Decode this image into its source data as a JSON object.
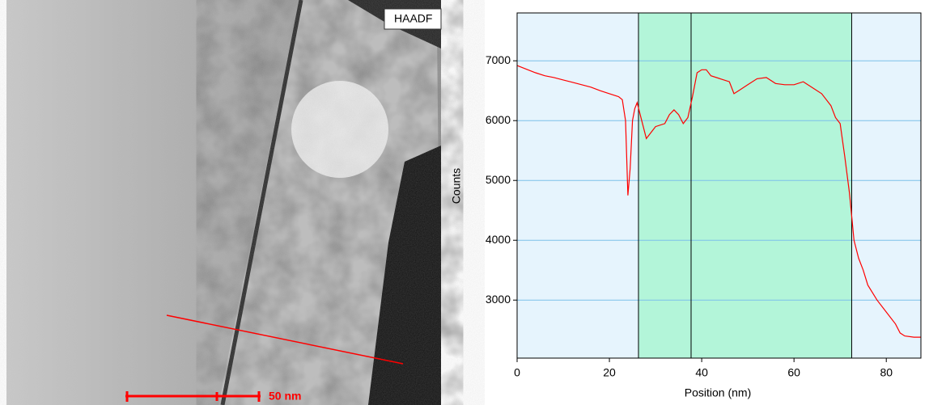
{
  "image_panel": {
    "label": "HAADF",
    "scale_bar": "50 nm"
  },
  "chart_data": {
    "type": "line",
    "xlabel": "Position (nm)",
    "ylabel": "Counts",
    "xlim": [
      0,
      87.5
    ],
    "ylim": [
      2030,
      7800
    ],
    "xticks": [
      0,
      20,
      40,
      60,
      80
    ],
    "yticks": [
      3000,
      4000,
      5000,
      6000,
      7000
    ],
    "grid": true,
    "region_boundaries": [
      26.3,
      37.7,
      72.5
    ],
    "outer_color": "#e6f4fd",
    "inner_color": "#b3f5d9",
    "x": [
      0,
      2,
      4,
      6,
      8,
      10,
      12,
      14,
      16,
      18,
      20,
      22,
      22.8,
      23.5,
      24,
      24.5,
      25,
      25.5,
      26,
      27,
      28,
      29,
      30,
      32,
      33,
      34,
      35,
      36,
      37,
      38,
      39,
      40,
      41,
      42,
      44,
      46,
      47,
      48,
      50,
      52,
      54,
      56,
      58,
      60,
      62,
      64,
      66,
      68,
      69,
      70,
      71,
      72,
      72.5,
      73,
      74,
      75,
      76,
      78,
      80,
      82,
      83,
      84,
      86,
      87.5
    ],
    "series": [
      {
        "color": "#ff0000",
        "values": [
          6920,
          6860,
          6800,
          6750,
          6720,
          6680,
          6640,
          6600,
          6560,
          6500,
          6450,
          6400,
          6350,
          6000,
          4750,
          5200,
          6000,
          6200,
          6300,
          6000,
          5700,
          5800,
          5900,
          5950,
          6100,
          6180,
          6100,
          5950,
          6050,
          6400,
          6800,
          6850,
          6850,
          6750,
          6700,
          6650,
          6450,
          6500,
          6600,
          6700,
          6720,
          6620,
          6600,
          6600,
          6650,
          6550,
          6450,
          6250,
          6050,
          5950,
          5400,
          4800,
          4400,
          4000,
          3700,
          3500,
          3250,
          3000,
          2800,
          2600,
          2450,
          2400,
          2380,
          2380
        ]
      }
    ]
  }
}
